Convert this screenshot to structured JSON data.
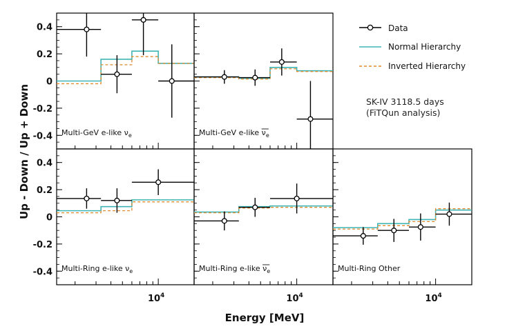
{
  "chart_data": {
    "type": "line",
    "xlabel": "Energy [MeV]",
    "ylabel": "Up - Down / Up + Down",
    "x_scale": "log",
    "xlim": [
      1400,
      20000
    ],
    "ylim": [
      -0.5,
      0.5
    ],
    "yticks": [
      -0.4,
      -0.2,
      0,
      0.2,
      0.4
    ],
    "ytick_labels": [
      "-0.4",
      "-0.2",
      "0",
      "0.2",
      "0.4"
    ],
    "xtick_label": "10",
    "xtick_label_exp": "4",
    "legend": {
      "placement": "top-right",
      "entries": [
        "Data",
        "Normal Hierarchy",
        "Inverted Hierarchy"
      ]
    },
    "annotation": [
      "SK-IV 3118.5 days",
      "(FiTQun analysis)"
    ],
    "colors": {
      "data": "#000000",
      "normal": "#3fb4b4",
      "inverted": "#e08a2c",
      "frame": "#000000"
    },
    "panels": [
      {
        "label": "Multi-GeV e-like",
        "particle": "ν",
        "particle_sub": "e",
        "bar": false,
        "bins": [
          1330,
          3300,
          6000,
          10000,
          100000
        ],
        "normal": [
          0.0,
          0.16,
          0.22,
          0.13
        ],
        "inverted": [
          -0.02,
          0.12,
          0.18,
          0.13
        ],
        "data": [
          {
            "x": 2500,
            "xlo": 1400,
            "xhi": 3300,
            "y": 0.38,
            "err": 0.2
          },
          {
            "x": 4500,
            "xlo": 3300,
            "xhi": 6000,
            "y": 0.05,
            "err": 0.14
          },
          {
            "x": 7500,
            "xlo": 6000,
            "xhi": 10000,
            "y": 0.45,
            "err": 0.26
          },
          {
            "x": 13000,
            "xlo": 10000,
            "xhi": 20000,
            "y": 0.0,
            "err": 0.27
          }
        ]
      },
      {
        "label": "Multi-GeV e-like",
        "particle": "ν",
        "particle_sub": "e",
        "bar": true,
        "bins": [
          1330,
          3300,
          6000,
          10000,
          100000
        ],
        "normal": [
          0.03,
          0.02,
          0.1,
          0.075
        ],
        "inverted": [
          0.025,
          0.015,
          0.09,
          0.07
        ],
        "data": [
          {
            "x": 2500,
            "xlo": 1400,
            "xhi": 3300,
            "y": 0.03,
            "err": 0.05
          },
          {
            "x": 4500,
            "xlo": 3300,
            "xhi": 6000,
            "y": 0.025,
            "err": 0.06
          },
          {
            "x": 7500,
            "xlo": 6000,
            "xhi": 10000,
            "y": 0.14,
            "err": 0.1
          },
          {
            "x": 13000,
            "xlo": 10000,
            "xhi": 20000,
            "y": -0.28,
            "err": 0.28
          }
        ]
      },
      {
        "label": "Multi-Ring e-like",
        "particle": "ν",
        "particle_sub": "e",
        "bar": false,
        "bins": [
          1330,
          3300,
          6000,
          100000
        ],
        "normal": [
          0.045,
          0.075,
          0.125
        ],
        "inverted": [
          0.03,
          0.045,
          0.11
        ],
        "data": [
          {
            "x": 2500,
            "xlo": 1400,
            "xhi": 3300,
            "y": 0.135,
            "err": 0.075
          },
          {
            "x": 4500,
            "xlo": 3300,
            "xhi": 6000,
            "y": 0.12,
            "err": 0.09
          },
          {
            "x": 10000,
            "xlo": 6000,
            "xhi": 20000,
            "y": 0.255,
            "err": 0.095
          }
        ]
      },
      {
        "label": "Multi-Ring e-like",
        "particle": "ν",
        "particle_sub": "e",
        "bar": true,
        "bins": [
          1330,
          3300,
          6000,
          100000
        ],
        "normal": [
          0.035,
          0.075,
          0.08
        ],
        "inverted": [
          0.03,
          0.065,
          0.07
        ],
        "data": [
          {
            "x": 2500,
            "xlo": 1400,
            "xhi": 3300,
            "y": -0.03,
            "err": 0.07
          },
          {
            "x": 4500,
            "xlo": 3300,
            "xhi": 6000,
            "y": 0.07,
            "err": 0.07
          },
          {
            "x": 10000,
            "xlo": 6000,
            "xhi": 20000,
            "y": 0.135,
            "err": 0.11
          }
        ]
      },
      {
        "label": "Multi-Ring Other",
        "particle": "",
        "particle_sub": "",
        "bar": false,
        "bins": [
          1330,
          3300,
          6000,
          10000,
          100000
        ],
        "normal": [
          -0.08,
          -0.05,
          -0.02,
          0.05
        ],
        "inverted": [
          -0.09,
          -0.065,
          -0.035,
          0.06
        ],
        "data": [
          {
            "x": 2500,
            "xlo": 1400,
            "xhi": 3300,
            "y": -0.14,
            "err": 0.065
          },
          {
            "x": 4500,
            "xlo": 3300,
            "xhi": 6000,
            "y": -0.1,
            "err": 0.085
          },
          {
            "x": 7500,
            "xlo": 6000,
            "xhi": 10000,
            "y": -0.075,
            "err": 0.1
          },
          {
            "x": 13000,
            "xlo": 10000,
            "xhi": 20000,
            "y": 0.02,
            "err": 0.085
          }
        ]
      }
    ]
  }
}
